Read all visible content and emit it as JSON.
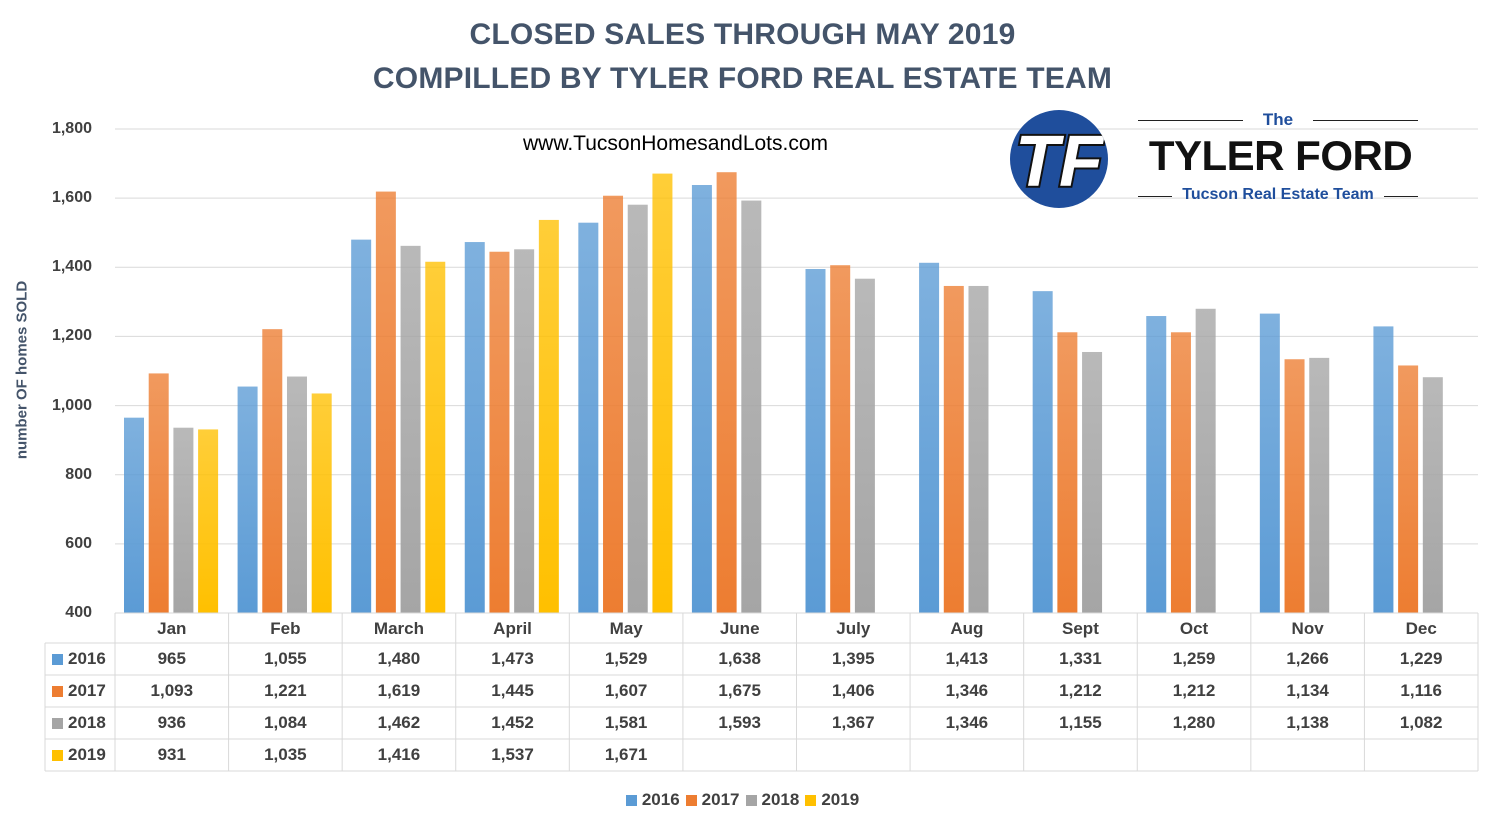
{
  "chart_data": {
    "type": "bar",
    "title": "CLOSED SALES THROUGH MAY 2019",
    "subtitle": "COMPILLED BY TYLER FORD REAL ESTATE TEAM",
    "website": "www.TucsonHomesandLots.com",
    "xlabel": "",
    "ylabel": "number OF homes SOLD",
    "ylim": [
      400,
      1800
    ],
    "yticks": [
      "1,800",
      "1,600",
      "1,400",
      "1,200",
      "1,000",
      "800",
      "600",
      "400"
    ],
    "grid": true,
    "legend_placement": "bottom",
    "categories": [
      "Jan",
      "Feb",
      "March",
      "April",
      "May",
      "June",
      "July",
      "Aug",
      "Sept",
      "Oct",
      "Nov",
      "Dec"
    ],
    "series": [
      {
        "name": "2016",
        "color": "#5b9bd5",
        "values": [
          965,
          1055,
          1480,
          1473,
          1529,
          1638,
          1395,
          1413,
          1331,
          1259,
          1266,
          1229
        ],
        "labels": [
          "965",
          "1,055",
          "1,480",
          "1,473",
          "1,529",
          "1,638",
          "1,395",
          "1,413",
          "1,331",
          "1,259",
          "1,266",
          "1,229"
        ]
      },
      {
        "name": "2017",
        "color": "#ed7d31",
        "values": [
          1093,
          1221,
          1619,
          1445,
          1607,
          1675,
          1406,
          1346,
          1212,
          1212,
          1134,
          1116
        ],
        "labels": [
          "1,093",
          "1,221",
          "1,619",
          "1,445",
          "1,607",
          "1,675",
          "1,406",
          "1,346",
          "1,212",
          "1,212",
          "1,134",
          "1,116"
        ]
      },
      {
        "name": "2018",
        "color": "#a5a5a5",
        "values": [
          936,
          1084,
          1462,
          1452,
          1581,
          1593,
          1367,
          1346,
          1155,
          1280,
          1138,
          1082
        ],
        "labels": [
          "936",
          "1,084",
          "1,462",
          "1,452",
          "1,581",
          "1,593",
          "1,367",
          "1,346",
          "1,155",
          "1,280",
          "1,138",
          "1,082"
        ]
      },
      {
        "name": "2019",
        "color": "#ffc000",
        "values": [
          931,
          1035,
          1416,
          1537,
          1671,
          null,
          null,
          null,
          null,
          null,
          null,
          null
        ],
        "labels": [
          "931",
          "1,035",
          "1,416",
          "1,537",
          "1,671",
          "",
          "",
          "",
          "",
          "",
          "",
          ""
        ]
      }
    ]
  },
  "logo": {
    "the": "The",
    "name": "TYLER FORD",
    "tagline": "Tucson Real Estate Team",
    "monogram": "TF"
  }
}
